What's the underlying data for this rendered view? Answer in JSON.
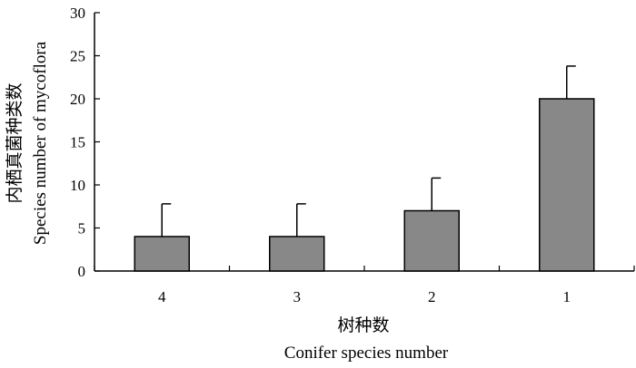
{
  "chart_data": {
    "type": "bar",
    "categories": [
      "4",
      "3",
      "2",
      "1"
    ],
    "series": [
      {
        "values": [
          4,
          4,
          7,
          20
        ],
        "error": [
          3.8,
          3.8,
          3.8,
          3.8
        ]
      }
    ],
    "title": "",
    "xlabel_cn": "树种数",
    "xlabel_en": "Conifer species number",
    "ylabel_cn": "内栖真菌种类数",
    "ylabel_en": "Species number of mycoflora",
    "ylim": [
      0,
      30
    ],
    "yticks": [
      0,
      5,
      10,
      15,
      20,
      25,
      30
    ],
    "grid": false,
    "legend": "none",
    "colors": {
      "bar_fill": "#888888",
      "bar_stroke": "#000000",
      "axis": "#000000"
    }
  }
}
